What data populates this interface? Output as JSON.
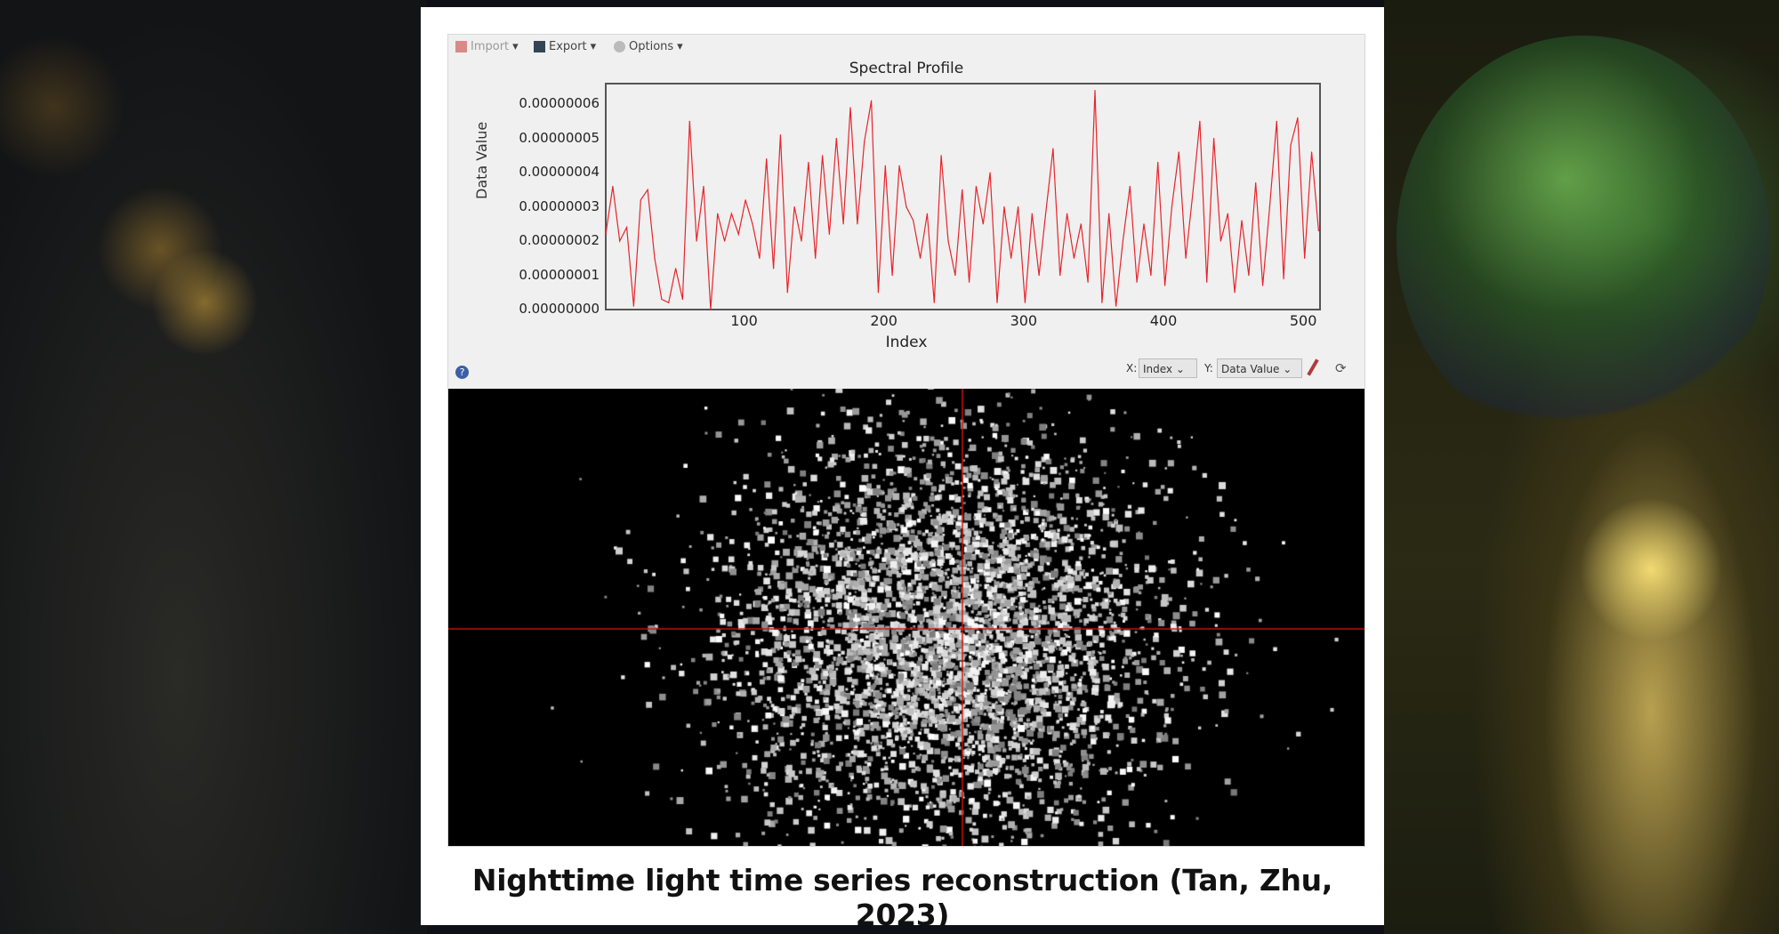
{
  "toolbar": {
    "import_label": "Import",
    "export_label": "Export",
    "options_label": "Options"
  },
  "chart_data": {
    "type": "line",
    "title": "Spectral Profile",
    "xlabel": "Index",
    "ylabel": "Data Value",
    "xlim": [
      1,
      512
    ],
    "ylim": [
      0,
      6.6e-08
    ],
    "xticks": [
      "100",
      "200",
      "300",
      "400",
      "500"
    ],
    "yticks": [
      "0.00000000",
      "0.00000001",
      "0.00000002",
      "0.00000003",
      "0.00000004",
      "0.00000005",
      "0.00000006"
    ],
    "line_color": "#e8242a",
    "x_start": 1,
    "x_step": 5,
    "values_e8": [
      2.2,
      3.6,
      2.0,
      2.4,
      0.1,
      3.2,
      3.5,
      1.5,
      0.3,
      0.2,
      1.2,
      0.3,
      5.5,
      2.0,
      3.6,
      0.0,
      2.8,
      2.0,
      2.8,
      2.2,
      3.2,
      2.5,
      1.5,
      4.4,
      1.2,
      5.1,
      0.5,
      3.0,
      2.0,
      4.3,
      1.5,
      4.5,
      2.2,
      5.0,
      2.5,
      5.9,
      2.5,
      4.9,
      6.1,
      0.5,
      4.2,
      1.0,
      4.2,
      3.0,
      2.6,
      1.5,
      2.8,
      0.2,
      4.5,
      2.0,
      1.0,
      3.5,
      0.8,
      3.6,
      2.5,
      4.0,
      0.2,
      3.0,
      1.5,
      3.0,
      0.2,
      2.8,
      1.0,
      2.9,
      4.7,
      1.0,
      2.8,
      1.5,
      2.5,
      0.8,
      6.4,
      0.2,
      2.8,
      0.1,
      2.0,
      3.6,
      0.8,
      2.5,
      1.0,
      4.3,
      0.7,
      3.0,
      4.6,
      1.5,
      3.4,
      5.5,
      0.8,
      5.0,
      2.0,
      2.8,
      0.5,
      2.6,
      1.0,
      3.7,
      0.7,
      3.0,
      5.5,
      0.9,
      4.8,
      5.6,
      1.5,
      4.6,
      2.3
    ]
  },
  "controls": {
    "x_label": "X:",
    "x_value": "Index",
    "y_label": "Y:",
    "y_value": "Data Value",
    "help": "?"
  },
  "caption": "Nighttime light time series reconstruction (Tan, Zhu, 2023)"
}
